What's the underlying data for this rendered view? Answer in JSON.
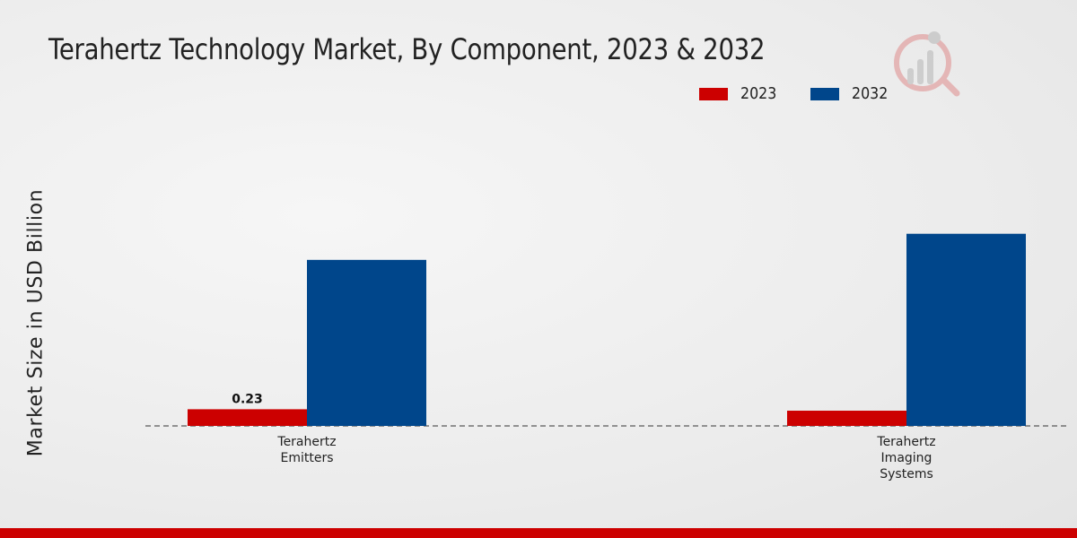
{
  "colors": {
    "series_2023": "#cc0000",
    "series_2032": "#00468b",
    "brand_bar": "#cc0000"
  },
  "logo": {
    "name": "watermark-logo-icon"
  },
  "chart_data": {
    "type": "bar",
    "title": "Terahertz Technology Market, By Component, 2023 & 2032",
    "xlabel": "",
    "ylabel": "Market Size in USD Billion",
    "categories": [
      "Terahertz\nEmitters",
      "Terahertz\nImaging\nSystems"
    ],
    "series": [
      {
        "name": "2023",
        "values": [
          0.23,
          0.21
        ],
        "data_labels": [
          "0.23",
          null
        ]
      },
      {
        "name": "2032",
        "values": [
          2.29,
          2.65
        ],
        "data_labels": [
          null,
          null
        ]
      }
    ],
    "ylim": [
      0,
      5.8
    ],
    "grid": false,
    "legend": "top-right"
  }
}
